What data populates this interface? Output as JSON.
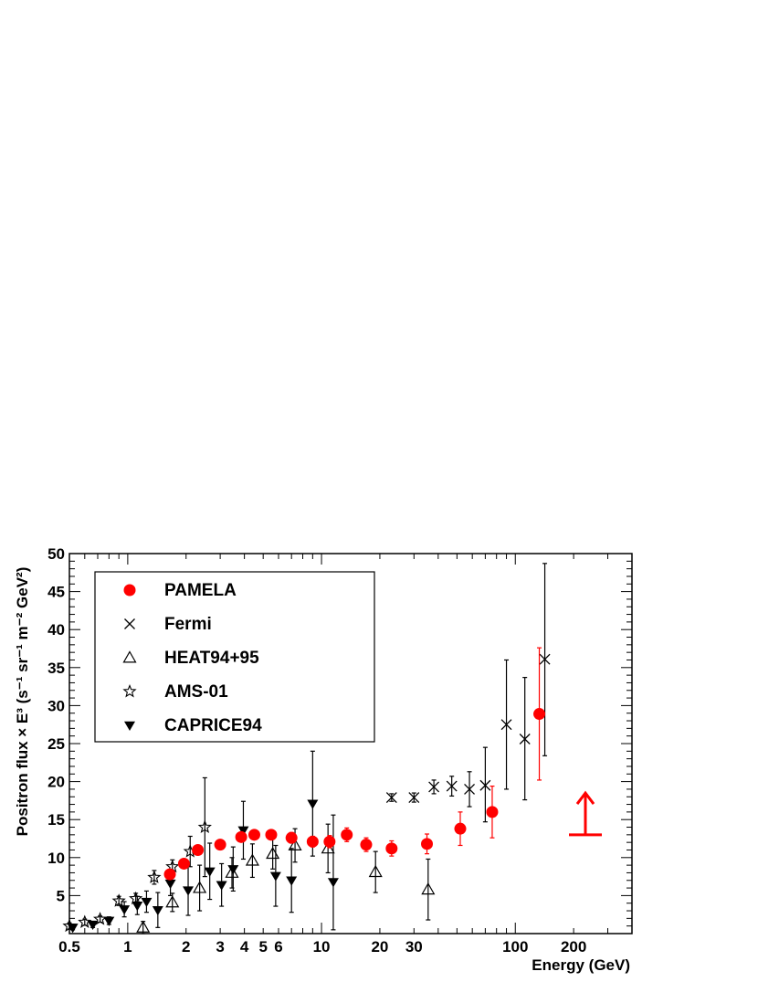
{
  "chart_data": {
    "type": "scatter",
    "title": "",
    "xlabel": "Energy (GeV)",
    "ylabel": "Positron flux × E³ (s⁻¹ sr⁻¹ m⁻² GeV²)",
    "x_scale": "log",
    "xlim": [
      0.5,
      400
    ],
    "ylim": [
      0,
      50
    ],
    "grid": false,
    "legend_placement": "top-left",
    "x_tick_labels": [
      {
        "value": 0.5,
        "label": "0.5"
      },
      {
        "value": 1,
        "label": "1"
      },
      {
        "value": 2,
        "label": "2"
      },
      {
        "value": 3,
        "label": "3"
      },
      {
        "value": 4,
        "label": "4"
      },
      {
        "value": 5,
        "label": "5"
      },
      {
        "value": 6,
        "label": "6"
      },
      {
        "value": 10,
        "label": "10"
      },
      {
        "value": 20,
        "label": "20"
      },
      {
        "value": 30,
        "label": "30"
      },
      {
        "value": 100,
        "label": "100"
      },
      {
        "value": 200,
        "label": "200"
      }
    ],
    "y_tick_labels": [
      {
        "value": 5,
        "label": "5"
      },
      {
        "value": 10,
        "label": "10"
      },
      {
        "value": 15,
        "label": "15"
      },
      {
        "value": 20,
        "label": "20"
      },
      {
        "value": 25,
        "label": "25"
      },
      {
        "value": 30,
        "label": "30"
      },
      {
        "value": 35,
        "label": "35"
      },
      {
        "value": 40,
        "label": "40"
      },
      {
        "value": 45,
        "label": "45"
      },
      {
        "value": 50,
        "label": "50"
      }
    ],
    "series": [
      {
        "name": "PAMELA",
        "marker": "filled-circle",
        "color": "#ff0000",
        "error_color": "#ff0000",
        "points": [
          {
            "x": 1.65,
            "y": 7.8,
            "lo": 7.3,
            "hi": 8.3
          },
          {
            "x": 1.95,
            "y": 9.2,
            "lo": 8.6,
            "hi": 9.8
          },
          {
            "x": 2.3,
            "y": 11.0,
            "lo": 10.4,
            "hi": 11.6
          },
          {
            "x": 3.0,
            "y": 11.7,
            "lo": 11.2,
            "hi": 12.2
          },
          {
            "x": 3.85,
            "y": 12.7,
            "lo": 12.1,
            "hi": 13.3
          },
          {
            "x": 4.5,
            "y": 13.0,
            "lo": 12.4,
            "hi": 13.6
          },
          {
            "x": 5.5,
            "y": 13.0,
            "lo": 12.4,
            "hi": 13.6
          },
          {
            "x": 7.0,
            "y": 12.6,
            "lo": 11.9,
            "hi": 13.3
          },
          {
            "x": 9.0,
            "y": 12.1,
            "lo": 11.4,
            "hi": 12.8
          },
          {
            "x": 11.0,
            "y": 12.1,
            "lo": 11.3,
            "hi": 12.9
          },
          {
            "x": 13.5,
            "y": 13.0,
            "lo": 12.1,
            "hi": 13.9
          },
          {
            "x": 17.0,
            "y": 11.7,
            "lo": 10.8,
            "hi": 12.6
          },
          {
            "x": 23.0,
            "y": 11.2,
            "lo": 10.2,
            "hi": 12.2
          },
          {
            "x": 35.0,
            "y": 11.8,
            "lo": 10.5,
            "hi": 13.1
          },
          {
            "x": 52.0,
            "y": 13.8,
            "lo": 11.6,
            "hi": 16.0
          },
          {
            "x": 76.0,
            "y": 16.0,
            "lo": 12.6,
            "hi": 19.4
          },
          {
            "x": 133.0,
            "y": 28.9,
            "lo": 20.2,
            "hi": 37.6
          }
        ]
      },
      {
        "name": "Fermi",
        "marker": "cross",
        "color": "#000000",
        "error_color": "#000000",
        "points": [
          {
            "x": 23.0,
            "y": 17.9,
            "lo": 17.4,
            "hi": 18.4
          },
          {
            "x": 30.0,
            "y": 17.9,
            "lo": 17.3,
            "hi": 18.5
          },
          {
            "x": 38.0,
            "y": 19.3,
            "lo": 18.4,
            "hi": 20.2
          },
          {
            "x": 47.0,
            "y": 19.4,
            "lo": 18.1,
            "hi": 20.7
          },
          {
            "x": 58.0,
            "y": 19.0,
            "lo": 16.7,
            "hi": 21.3
          },
          {
            "x": 70.0,
            "y": 19.5,
            "lo": 14.7,
            "hi": 24.5
          },
          {
            "x": 90.0,
            "y": 27.5,
            "lo": 19.0,
            "hi": 36.0
          },
          {
            "x": 112.0,
            "y": 25.6,
            "lo": 17.6,
            "hi": 33.7
          },
          {
            "x": 142.0,
            "y": 36.1,
            "lo": 23.4,
            "hi": 48.7
          }
        ]
      },
      {
        "name": "HEAT94+95",
        "marker": "open-triangle",
        "color": "#000000",
        "error_color": "#000000",
        "points": [
          {
            "x": 1.2,
            "y": 0.8,
            "lo": 0.0,
            "hi": 1.6
          },
          {
            "x": 1.7,
            "y": 4.1,
            "lo": 2.9,
            "hi": 5.3
          },
          {
            "x": 2.35,
            "y": 6.0,
            "lo": 3.0,
            "hi": 9.0
          },
          {
            "x": 3.45,
            "y": 8.0,
            "lo": 6.0,
            "hi": 10.0
          },
          {
            "x": 4.4,
            "y": 9.6,
            "lo": 7.4,
            "hi": 11.8
          },
          {
            "x": 5.6,
            "y": 10.5,
            "lo": 8.5,
            "hi": 12.5
          },
          {
            "x": 7.3,
            "y": 11.6,
            "lo": 9.4,
            "hi": 13.8
          },
          {
            "x": 10.8,
            "y": 11.2,
            "lo": 8.0,
            "hi": 14.4
          },
          {
            "x": 19.0,
            "y": 8.1,
            "lo": 5.4,
            "hi": 10.8
          },
          {
            "x": 35.5,
            "y": 5.8,
            "lo": 1.8,
            "hi": 9.8
          }
        ]
      },
      {
        "name": "AMS-01",
        "marker": "open-star",
        "color": "#000000",
        "error_color": "#000000",
        "points": [
          {
            "x": 0.5,
            "y": 1.0,
            "lo": 0.6,
            "hi": 1.4
          },
          {
            "x": 0.6,
            "y": 1.5,
            "lo": 1.1,
            "hi": 1.9
          },
          {
            "x": 0.72,
            "y": 1.9,
            "lo": 1.5,
            "hi": 2.3
          },
          {
            "x": 0.9,
            "y": 4.3,
            "lo": 3.7,
            "hi": 4.9
          },
          {
            "x": 1.1,
            "y": 4.6,
            "lo": 3.9,
            "hi": 5.3
          },
          {
            "x": 1.37,
            "y": 7.4,
            "lo": 6.5,
            "hi": 8.3
          },
          {
            "x": 1.7,
            "y": 8.8,
            "lo": 7.9,
            "hi": 9.7
          },
          {
            "x": 2.1,
            "y": 10.8,
            "lo": 8.8,
            "hi": 12.8
          },
          {
            "x": 2.5,
            "y": 14.0,
            "lo": 7.5,
            "hi": 20.5
          }
        ]
      },
      {
        "name": "CAPRICE94",
        "marker": "filled-triangle-down",
        "color": "#000000",
        "error_color": "#000000",
        "points": [
          {
            "x": 0.52,
            "y": 0.8,
            "lo": 0.5,
            "hi": 1.1
          },
          {
            "x": 0.66,
            "y": 1.2,
            "lo": 0.8,
            "hi": 1.6
          },
          {
            "x": 0.8,
            "y": 1.7,
            "lo": 1.2,
            "hi": 2.2
          },
          {
            "x": 0.96,
            "y": 3.2,
            "lo": 2.2,
            "hi": 4.2
          },
          {
            "x": 1.12,
            "y": 3.7,
            "lo": 2.5,
            "hi": 4.9
          },
          {
            "x": 1.25,
            "y": 4.2,
            "lo": 2.8,
            "hi": 5.6
          },
          {
            "x": 1.43,
            "y": 3.1,
            "lo": 0.8,
            "hi": 5.4
          },
          {
            "x": 1.66,
            "y": 6.6,
            "lo": 5.0,
            "hi": 8.2
          },
          {
            "x": 2.05,
            "y": 5.7,
            "lo": 2.4,
            "hi": 9.0
          },
          {
            "x": 2.65,
            "y": 8.2,
            "lo": 4.5,
            "hi": 11.9
          },
          {
            "x": 3.05,
            "y": 6.4,
            "lo": 3.6,
            "hi": 9.2
          },
          {
            "x": 3.5,
            "y": 8.5,
            "lo": 5.6,
            "hi": 11.4
          },
          {
            "x": 3.95,
            "y": 13.6,
            "lo": 9.8,
            "hi": 17.4
          },
          {
            "x": 5.8,
            "y": 7.6,
            "lo": 3.6,
            "hi": 11.6
          },
          {
            "x": 7.0,
            "y": 7.0,
            "lo": 2.8,
            "hi": 11.2
          },
          {
            "x": 9.0,
            "y": 17.1,
            "lo": 10.2,
            "hi": 24.0
          },
          {
            "x": 11.5,
            "y": 6.8,
            "lo": 0.5,
            "hi": 15.6
          }
        ]
      }
    ],
    "annotations": [
      {
        "type": "up-arrow",
        "x": 230,
        "y_base": 13.0,
        "y_tip": 18.5,
        "color": "#ff0000"
      }
    ]
  }
}
